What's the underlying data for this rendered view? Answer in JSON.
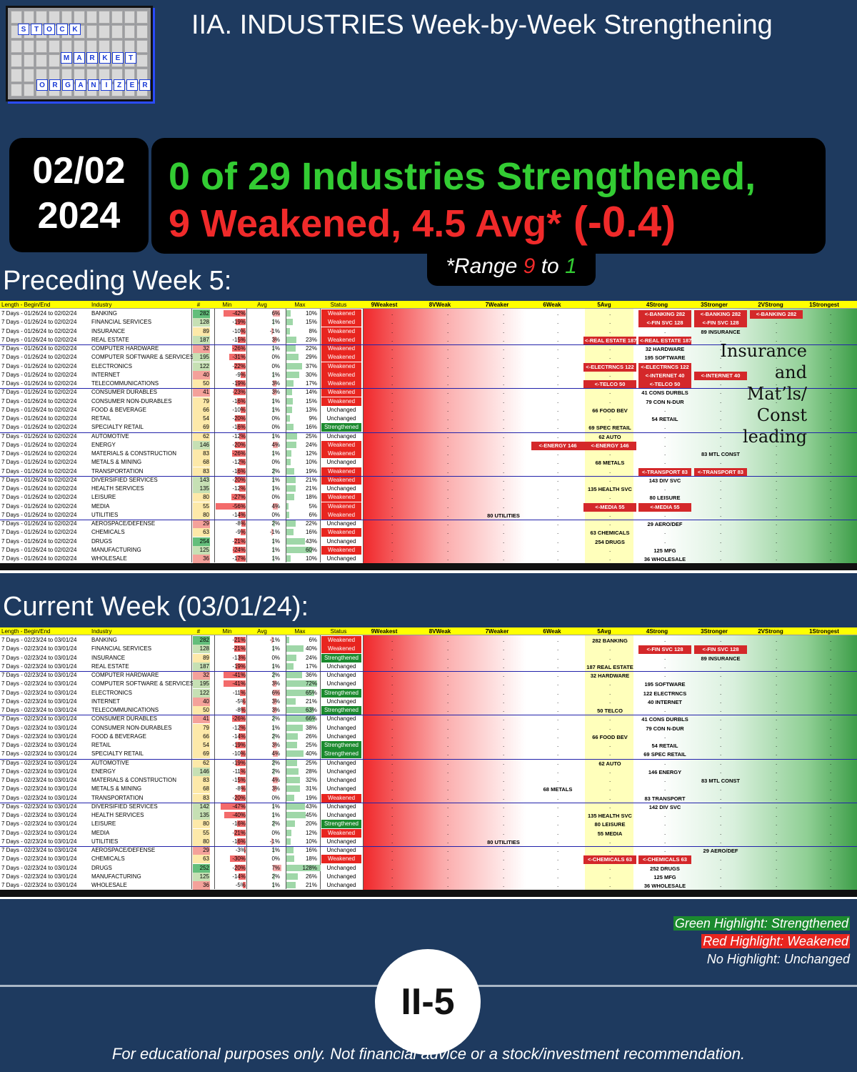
{
  "logo": {
    "rows": [
      [
        "S",
        "T",
        "O",
        "C",
        "K"
      ],
      [
        "M",
        "A",
        "R",
        "K",
        "E",
        "T"
      ],
      [
        "O",
        "R",
        "G",
        "A",
        "N",
        "I",
        "Z",
        "E",
        "R"
      ]
    ]
  },
  "title": "IIA. INDUSTRIES Week-by-Week Strengthening",
  "date": {
    "line1": "02/02",
    "line2": "2024"
  },
  "headline": {
    "line1": "0 of 29 Industries Strengthened,",
    "line2a": "9 Weakened, 4.5 Avg*",
    "line2b": " (-0.4)"
  },
  "range": {
    "prefix": "*Range ",
    "high": "9",
    "mid": " to ",
    "low": "1"
  },
  "sections": {
    "preceding": "Preceding Week 5:",
    "current": "Current Week (03/01/24):"
  },
  "annotation": "Insurance and Mat’ls/ Const leading",
  "legend": {
    "green": "Green Highlight: Strengthened",
    "red": "Red Highlight: Weakened",
    "none": "No Highlight: Unchanged"
  },
  "page_number": "II-5",
  "footer": "For educational purposes only. Not financial advice or a stock/investment recommendation.",
  "colors": {
    "background": "#1e3a5f",
    "strengthened": "#1b8a2e",
    "weakened": "#e8251f",
    "header": "#ffff00"
  },
  "chart_data": {
    "type": "table",
    "columns": [
      "Length - Begin/End",
      "Industry",
      "#",
      "Min",
      "Avg",
      "Max",
      "Status",
      "9Weakest",
      "8VWeak",
      "7Weaker",
      "6Weak",
      "5Avg",
      "4Strong",
      "3Stronger",
      "2VStrong",
      "1Strongest"
    ],
    "tables": [
      {
        "name": "Preceding Week 5",
        "period": "7 Days - 01/26/24 to 02/02/24",
        "rows": [
          [
            "BANKING",
            282,
            "-42%",
            "6%",
            "10%",
            "Weakened",
            [
              [
                "<-BANKING 282",
                4,
                "red"
              ],
              [
                "<-BANKING 282",
                3,
                "red"
              ],
              [
                "<-BANKING 282",
                2,
                "red"
              ]
            ]
          ],
          [
            "FINANCIAL SERVICES",
            128,
            "-19%",
            "1%",
            "15%",
            "Weakened",
            [
              [
                "<-FIN SVC 128",
                4,
                "red"
              ],
              [
                "<-FIN SVC 128",
                3,
                "red"
              ]
            ]
          ],
          [
            "INSURANCE",
            89,
            "-10%",
            "-1%",
            "8%",
            "Weakened",
            [
              [
                "89 INSURANCE",
                3,
                ""
              ]
            ]
          ],
          [
            "REAL ESTATE",
            187,
            "-15%",
            "3%",
            "23%",
            "Weakened",
            [
              [
                "<-REAL ESTATE 187",
                5,
                "red"
              ],
              [
                "<-REAL ESTATE 187",
                4,
                "red"
              ]
            ]
          ],
          [
            "COMPUTER HARDWARE",
            32,
            "-26%",
            "1%",
            "22%",
            "Weakened",
            [
              [
                "32 HARDWARE",
                4,
                ""
              ]
            ]
          ],
          [
            "COMPUTER SOFTWARE & SERVICES",
            195,
            "-31%",
            "0%",
            "29%",
            "Weakened",
            [
              [
                "195 SOFTWARE",
                4,
                ""
              ]
            ]
          ],
          [
            "ELECTRONICS",
            122,
            "-22%",
            "0%",
            "37%",
            "Weakened",
            [
              [
                "<-ELECTRNCS 122",
                5,
                "red"
              ],
              [
                "<-ELECTRNCS 122",
                4,
                "red"
              ]
            ]
          ],
          [
            "INTERNET",
            40,
            "-9%",
            "1%",
            "30%",
            "Weakened",
            [
              [
                "<-INTERNET 40",
                4,
                "red"
              ],
              [
                "<-INTERNET 40",
                3,
                "red"
              ]
            ]
          ],
          [
            "TELECOMMUNICATIONS",
            50,
            "-19%",
            "3%",
            "17%",
            "Weakened",
            [
              [
                "<-TELCO 50",
                5,
                "red"
              ],
              [
                "<-TELCO 50",
                4,
                "red"
              ]
            ]
          ],
          [
            "CONSUMER DURABLES",
            41,
            "-23%",
            "3%",
            "14%",
            "Weakened",
            [
              [
                "41 CONS DURBLS",
                4,
                ""
              ]
            ]
          ],
          [
            "CONSUMER NON-DURABLES",
            79,
            "-16%",
            "1%",
            "15%",
            "Weakened",
            [
              [
                "79 CON N-DUR",
                4,
                ""
              ]
            ]
          ],
          [
            "FOOD & BEVERAGE",
            66,
            "-10%",
            "1%",
            "13%",
            "Unchanged",
            [
              [
                "66 FOOD BEV",
                5,
                ""
              ]
            ]
          ],
          [
            "RETAIL",
            54,
            "-20%",
            "0%",
            "9%",
            "Unchanged",
            [
              [
                "54 RETAIL",
                4,
                ""
              ]
            ]
          ],
          [
            "SPECIALTY RETAIL",
            69,
            "-16%",
            "0%",
            "16%",
            "Strengthened",
            [
              [
                "69 SPEC RETAIL",
                5,
                ""
              ]
            ]
          ],
          [
            "AUTOMOTIVE",
            62,
            "-12%",
            "1%",
            "25%",
            "Unchanged",
            [
              [
                "62 AUTO",
                5,
                ""
              ]
            ]
          ],
          [
            "ENERGY",
            146,
            "-20%",
            "4%",
            "24%",
            "Weakened",
            [
              [
                "<-ENERGY 146",
                6,
                "red"
              ],
              [
                "<-ENERGY 146",
                5,
                "red"
              ]
            ]
          ],
          [
            "MATERIALS & CONSTRUCTION",
            83,
            "-26%",
            "1%",
            "12%",
            "Weakened",
            [
              [
                "83 MTL CONST",
                3,
                ""
              ]
            ]
          ],
          [
            "METALS & MINING",
            68,
            "-12%",
            "0%",
            "10%",
            "Unchanged",
            [
              [
                "68 METALS",
                5,
                ""
              ]
            ]
          ],
          [
            "TRANSPORTATION",
            83,
            "-16%",
            "2%",
            "19%",
            "Weakened",
            [
              [
                "<-TRANSPORT 83",
                4,
                "red"
              ],
              [
                "<-TRANSPORT 83",
                3,
                "red"
              ]
            ]
          ],
          [
            "DIVERSIFIED SERVICES",
            143,
            "-20%",
            "1%",
            "21%",
            "Weakened",
            [
              [
                "143 DIV SVC",
                4,
                ""
              ]
            ]
          ],
          [
            "HEALTH SERVICES",
            135,
            "-12%",
            "1%",
            "21%",
            "Unchanged",
            [
              [
                "135 HEALTH SVC",
                5,
                ""
              ]
            ]
          ],
          [
            "LEISURE",
            80,
            "-27%",
            "0%",
            "18%",
            "Weakened",
            [
              [
                "80 LEISURE",
                4,
                ""
              ]
            ]
          ],
          [
            "MEDIA",
            55,
            "-56%",
            "4%",
            "5%",
            "Weakened",
            [
              [
                "<-MEDIA 55",
                5,
                "red"
              ],
              [
                "<-MEDIA 55",
                4,
                "red"
              ]
            ]
          ],
          [
            "UTILITIES",
            80,
            "-14%",
            "0%",
            "6%",
            "Weakened",
            [
              [
                "80 UTILITIES",
                7,
                ""
              ]
            ]
          ],
          [
            "AEROSPACE/DEFENSE",
            29,
            "-8%",
            "2%",
            "22%",
            "Unchanged",
            [
              [
                "29 AERO/DEF",
                4,
                ""
              ]
            ]
          ],
          [
            "CHEMICALS",
            63,
            "-9%",
            "-1%",
            "16%",
            "Weakened",
            [
              [
                "63 CHEMICALS",
                5,
                ""
              ]
            ]
          ],
          [
            "DRUGS",
            254,
            "-21%",
            "1%",
            "43%",
            "Unchanged",
            [
              [
                "254 DRUGS",
                5,
                ""
              ]
            ]
          ],
          [
            "MANUFACTURING",
            125,
            "-24%",
            "1%",
            "60%",
            "Weakened",
            [
              [
                "125 MFG",
                4,
                ""
              ]
            ]
          ],
          [
            "WHOLESALE",
            36,
            "-17%",
            "1%",
            "10%",
            "Unchanged",
            [
              [
                "36 WHOLESALE",
                4,
                ""
              ]
            ]
          ]
        ]
      },
      {
        "name": "Current Week",
        "period": "7 Days - 02/23/24 to 03/01/24",
        "rows": [
          [
            "BANKING",
            282,
            "-21%",
            "-1%",
            "6%",
            "Weakened",
            [
              [
                "282 BANKING",
                5,
                ""
              ]
            ]
          ],
          [
            "FINANCIAL SERVICES",
            128,
            "-21%",
            "1%",
            "40%",
            "Weakened",
            [
              [
                "<-FIN SVC 128",
                4,
                "red"
              ],
              [
                "<-FIN SVC 128",
                3,
                "red"
              ]
            ]
          ],
          [
            "INSURANCE",
            89,
            "-13%",
            "0%",
            "24%",
            "Strengthened",
            [
              [
                "89 INSURANCE",
                3,
                ""
              ]
            ]
          ],
          [
            "REAL ESTATE",
            187,
            "-19%",
            "1%",
            "17%",
            "Unchanged",
            [
              [
                "187 REAL ESTATE",
                5,
                ""
              ]
            ]
          ],
          [
            "COMPUTER HARDWARE",
            32,
            "-41%",
            "2%",
            "36%",
            "Unchanged",
            [
              [
                "32 HARDWARE",
                5,
                ""
              ]
            ]
          ],
          [
            "COMPUTER SOFTWARE & SERVICES",
            195,
            "-41%",
            "3%",
            "72%",
            "Unchanged",
            [
              [
                "195 SOFTWARE",
                4,
                ""
              ]
            ]
          ],
          [
            "ELECTRONICS",
            122,
            "-11%",
            "6%",
            "65%",
            "Strengthened",
            [
              [
                "122 ELECTRNCS",
                4,
                ""
              ]
            ]
          ],
          [
            "INTERNET",
            40,
            "-5%",
            "3%",
            "21%",
            "Unchanged",
            [
              [
                "40 INTERNET",
                4,
                ""
              ]
            ]
          ],
          [
            "TELECOMMUNICATIONS",
            50,
            "-8%",
            "3%",
            "63%",
            "Strengthened",
            [
              [
                "50 TELCO",
                5,
                ""
              ]
            ]
          ],
          [
            "CONSUMER DURABLES",
            41,
            "-26%",
            "2%",
            "66%",
            "Unchanged",
            [
              [
                "41 CONS DURBLS",
                4,
                ""
              ]
            ]
          ],
          [
            "CONSUMER NON-DURABLES",
            79,
            "-12%",
            "1%",
            "38%",
            "Unchanged",
            [
              [
                "79 CON N-DUR",
                4,
                ""
              ]
            ]
          ],
          [
            "FOOD & BEVERAGE",
            66,
            "-14%",
            "2%",
            "26%",
            "Unchanged",
            [
              [
                "66 FOOD BEV",
                5,
                ""
              ]
            ]
          ],
          [
            "RETAIL",
            54,
            "-19%",
            "3%",
            "25%",
            "Strengthened",
            [
              [
                "54 RETAIL",
                4,
                ""
              ]
            ]
          ],
          [
            "SPECIALTY RETAIL",
            69,
            "-10%",
            "4%",
            "40%",
            "Strengthened",
            [
              [
                "69 SPEC RETAIL",
                4,
                ""
              ]
            ]
          ],
          [
            "AUTOMOTIVE",
            62,
            "-19%",
            "2%",
            "25%",
            "Unchanged",
            [
              [
                "62 AUTO",
                5,
                ""
              ]
            ]
          ],
          [
            "ENERGY",
            146,
            "-11%",
            "2%",
            "28%",
            "Unchanged",
            [
              [
                "146 ENERGY",
                4,
                ""
              ]
            ]
          ],
          [
            "MATERIALS & CONSTRUCTION",
            83,
            "-15%",
            "4%",
            "32%",
            "Unchanged",
            [
              [
                "83 MTL CONST",
                3,
                ""
              ]
            ]
          ],
          [
            "METALS & MINING",
            68,
            "-8%",
            "3%",
            "31%",
            "Unchanged",
            [
              [
                "68 METALS",
                6,
                ""
              ]
            ]
          ],
          [
            "TRANSPORTATION",
            83,
            "-20%",
            "0%",
            "19%",
            "Weakened",
            [
              [
                "83 TRANSPORT",
                4,
                ""
              ]
            ]
          ],
          [
            "DIVERSIFIED SERVICES",
            142,
            "-47%",
            "1%",
            "43%",
            "Unchanged",
            [
              [
                "142 DIV SVC",
                4,
                ""
              ]
            ]
          ],
          [
            "HEALTH SERVICES",
            135,
            "-40%",
            "1%",
            "45%",
            "Unchanged",
            [
              [
                "135 HEALTH SVC",
                5,
                ""
              ]
            ]
          ],
          [
            "LEISURE",
            80,
            "-16%",
            "2%",
            "20%",
            "Strengthened",
            [
              [
                "80 LEISURE",
                5,
                ""
              ]
            ]
          ],
          [
            "MEDIA",
            55,
            "-21%",
            "0%",
            "12%",
            "Weakened",
            [
              [
                "55 MEDIA",
                5,
                ""
              ]
            ]
          ],
          [
            "UTILITIES",
            80,
            "-16%",
            "-1%",
            "10%",
            "Unchanged",
            [
              [
                "80 UTILITIES",
                7,
                ""
              ]
            ]
          ],
          [
            "AEROSPACE/DEFENSE",
            29,
            "-3%",
            "1%",
            "16%",
            "Unchanged",
            [
              [
                "29 AERO/DEF",
                3,
                ""
              ]
            ]
          ],
          [
            "CHEMICALS",
            63,
            "-30%",
            "0%",
            "18%",
            "Weakened",
            [
              [
                "<-CHEMICALS 63",
                5,
                "red"
              ],
              [
                "<-CHEMICALS 63",
                4,
                "red"
              ]
            ]
          ],
          [
            "DRUGS",
            252,
            "-20%",
            "7%",
            "128%",
            "Unchanged",
            [
              [
                "252 DRUGS",
                4,
                ""
              ]
            ]
          ],
          [
            "MANUFACTURING",
            125,
            "-14%",
            "2%",
            "26%",
            "Unchanged",
            [
              [
                "125 MFG",
                4,
                ""
              ]
            ]
          ],
          [
            "WHOLESALE",
            36,
            "-5%",
            "1%",
            "21%",
            "Unchanged",
            [
              [
                "36 WHOLESALE",
                4,
                ""
              ]
            ]
          ]
        ]
      }
    ]
  }
}
